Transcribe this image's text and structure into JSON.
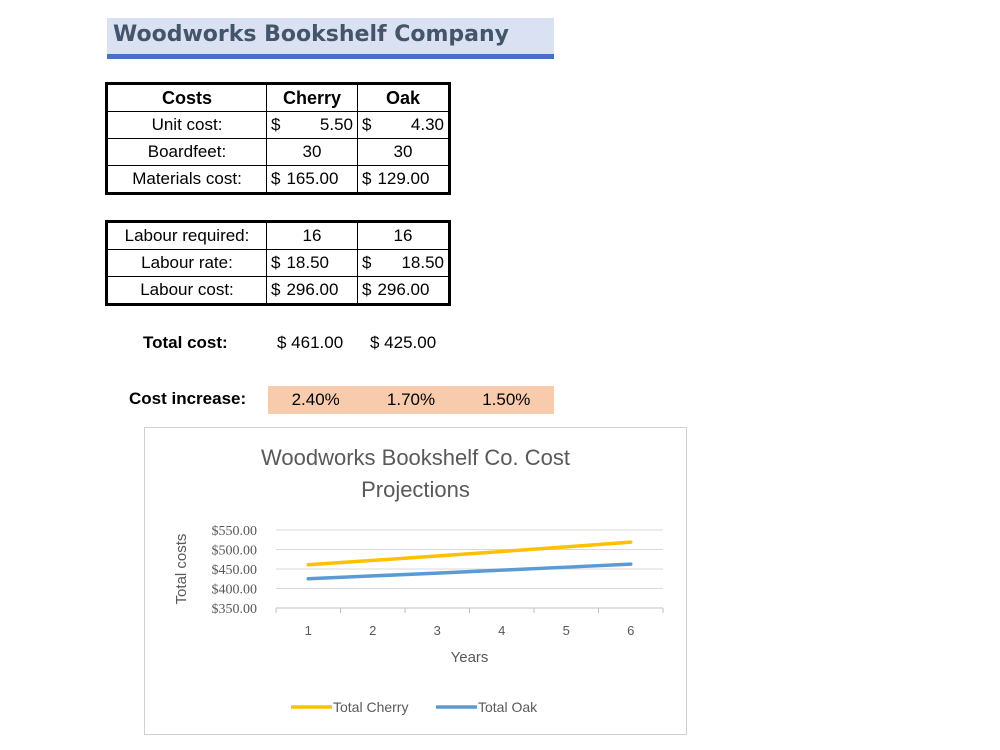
{
  "header": {
    "title": "Woodworks Bookshelf Company"
  },
  "costs_table": {
    "headers": [
      "Costs",
      "Cherry",
      "Oak"
    ],
    "rows": [
      {
        "label": "Unit cost:",
        "cherry": "5.50",
        "oak": "4.30",
        "currency": true
      },
      {
        "label": "Boardfeet:",
        "cherry": "30",
        "oak": "30",
        "currency": false
      },
      {
        "label": "Materials cost:",
        "cherry": "165.00",
        "oak": "129.00",
        "currency": true
      }
    ]
  },
  "labour_table": {
    "rows": [
      {
        "label": "Labour required:",
        "cherry": "16",
        "oak": "16",
        "currency": false
      },
      {
        "label": "Labour rate:",
        "cherry": "18.50",
        "oak": "18.50",
        "currency": true
      },
      {
        "label": "Labour cost:",
        "cherry": "296.00",
        "oak": "296.00",
        "currency": true
      }
    ]
  },
  "totals": {
    "label": "Total cost:",
    "cherry": "$ 461.00",
    "oak": "$  425.00"
  },
  "cost_increase": {
    "label": "Cost increase:",
    "values": [
      "2.40%",
      "1.70%",
      "1.50%"
    ]
  },
  "currency_symbol": "$",
  "chart_data": {
    "type": "line",
    "title_lines": [
      "Woodworks Bookshelf Co. Cost",
      "Projections"
    ],
    "xlabel": "Years",
    "ylabel": "Total costs",
    "x": [
      1,
      2,
      3,
      4,
      5,
      6
    ],
    "yticks": [
      "$350.00",
      "$400.00",
      "$450.00",
      "$500.00",
      "$550.00"
    ],
    "ylim": [
      350,
      550
    ],
    "legend_position": "bottom",
    "series": [
      {
        "name": "Total Cherry",
        "color": "#ffc000",
        "values": [
          461.0,
          472.06,
          483.39,
          494.99,
          506.87,
          519.04
        ]
      },
      {
        "name": "Total Oak",
        "color": "#5b9bd5",
        "values": [
          425.0,
          432.23,
          439.57,
          447.05,
          454.65,
          462.38
        ]
      }
    ]
  }
}
